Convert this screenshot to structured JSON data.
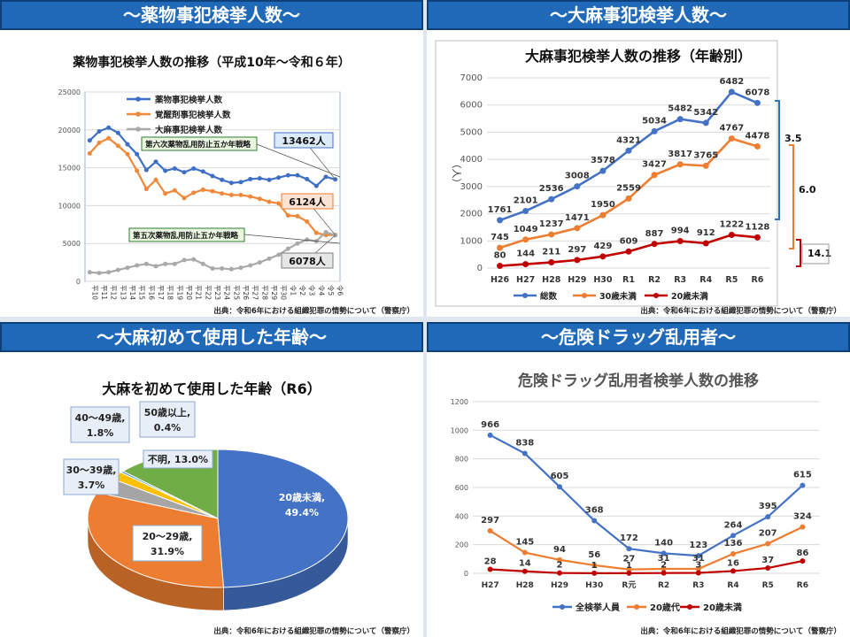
{
  "panels": {
    "tl": {
      "header": "〜薬物事犯検挙人数〜",
      "title": "薬物事犯検挙人数の推移（平成10年〜令和６年）",
      "source": "出典：令和6年における組織犯罪の情勢について（警察庁）"
    },
    "tr": {
      "header": "〜大麻事犯検挙人数〜",
      "title": "大麻事犯検挙人数の推移（年齢別）",
      "source": "出典：令和6年における組織犯罪の情勢について（警察庁）"
    },
    "bl": {
      "header": "〜大麻初めて使用した年齢〜",
      "title": "大麻を初めて使用した年齢（R6）",
      "source": "出典：令和6年における組織犯罪の情勢について（警察庁）"
    },
    "br": {
      "header": "〜危険ドラッグ乱用者〜",
      "title": "危険ドラッグ乱用者検挙人数の推移",
      "source": "出典：令和6年における組織犯罪の情勢について（警察庁）"
    }
  },
  "chart_data": [
    {
      "type": "line",
      "title": "薬物事犯検挙人数の推移（平成10年〜令和６年）",
      "categories": [
        "平10",
        "平11",
        "平12",
        "平13",
        "平14",
        "平15",
        "平16",
        "平17",
        "平18",
        "平19",
        "平20",
        "平21",
        "平22",
        "平23",
        "平24",
        "平25",
        "平26",
        "平27",
        "平28",
        "平29",
        "平30",
        "令1",
        "令2",
        "令3",
        "令4",
        "令5",
        "令6"
      ],
      "ylim": [
        0,
        25000
      ],
      "yticks": [
        0,
        5000,
        10000,
        15000,
        20000,
        25000
      ],
      "grid": true,
      "legend_position": "top-left",
      "series": [
        {
          "name": "薬物事犯検挙人数",
          "color": "#3d6fc4",
          "values": [
            18600,
            19800,
            20300,
            19600,
            18100,
            16800,
            14700,
            15800,
            14600,
            14900,
            14400,
            14900,
            14500,
            13900,
            13400,
            13000,
            13100,
            13500,
            13600,
            13400,
            13700,
            14000,
            14000,
            13500,
            12600,
            13800,
            13462
          ]
        },
        {
          "name": "覚醒剤事犯検挙人数",
          "color": "#f0883a",
          "values": [
            16900,
            18300,
            18900,
            17900,
            16800,
            14600,
            12200,
            13400,
            11600,
            12000,
            11000,
            11700,
            12100,
            11900,
            11600,
            11400,
            11400,
            11200,
            10900,
            10500,
            10300,
            8700,
            8600,
            7900,
            6400,
            6100,
            6124
          ]
        },
        {
          "name": "大麻事犯検挙人数",
          "color": "#a9a9a9",
          "values": [
            1200,
            1100,
            1200,
            1500,
            1800,
            2100,
            2300,
            2000,
            2300,
            2300,
            2800,
            2900,
            2300,
            1700,
            1700,
            1600,
            1800,
            2100,
            2500,
            3000,
            3500,
            4300,
            5000,
            5500,
            5300,
            6500,
            6078
          ]
        }
      ],
      "annotations": [
        {
          "text": "13462人",
          "series": 0,
          "index": 26
        },
        {
          "text": "6124人",
          "series": 1,
          "index": 26
        },
        {
          "text": "6078人",
          "series": 2,
          "index": 26
        },
        {
          "text": "第六次薬物乱用防止五か年戦略"
        },
        {
          "text": "第五次薬物乱用防止五か年戦略"
        }
      ]
    },
    {
      "type": "line",
      "title": "大麻事犯検挙人数の推移（年齢別）",
      "ylabel": "（人）",
      "categories": [
        "H26",
        "H27",
        "H28",
        "H29",
        "H30",
        "R1",
        "R2",
        "R3",
        "R4",
        "R5",
        "R6"
      ],
      "ylim": [
        0,
        7000
      ],
      "yticks": [
        0,
        1000,
        2000,
        3000,
        4000,
        5000,
        6000,
        7000
      ],
      "grid": true,
      "legend_position": "bottom",
      "series": [
        {
          "name": "総数",
          "color": "#4472c4",
          "values": [
            1761,
            2101,
            2536,
            3008,
            3578,
            4321,
            5034,
            5482,
            5342,
            6482,
            6078
          ]
        },
        {
          "name": "30歳未満",
          "color": "#ed7d31",
          "values": [
            745,
            1049,
            1237,
            1471,
            1950,
            2559,
            3427,
            3817,
            3765,
            4767,
            4478
          ]
        },
        {
          "name": "20歳未満",
          "color": "#c00000",
          "values": [
            80,
            144,
            211,
            297,
            429,
            609,
            887,
            994,
            912,
            1222,
            1128
          ]
        }
      ],
      "ratios": [
        "3.5",
        "6.0",
        "14.1"
      ]
    },
    {
      "type": "pie",
      "title": "大麻を初めて使用した年齢（R6）",
      "slices": [
        {
          "label": "20歳未満",
          "value": 49.4,
          "text": "49.4%",
          "color": "#4472c4"
        },
        {
          "label": "20〜29歳",
          "value": 31.9,
          "text": "31.9%",
          "color": "#ed7d31"
        },
        {
          "label": "30〜39歳",
          "value": 3.7,
          "text": "3.7%",
          "color": "#a5a5a5"
        },
        {
          "label": "40〜49歳",
          "value": 1.8,
          "text": "1.8%",
          "color": "#ffc000"
        },
        {
          "label": "50歳以上",
          "value": 0.4,
          "text": "0.4%",
          "color": "#5b9bd5"
        },
        {
          "label": "不明",
          "value": 13.0,
          "text": "13.0%",
          "color": "#70ad47"
        }
      ]
    },
    {
      "type": "line",
      "title": "危険ドラッグ乱用者検挙人数の推移",
      "categories": [
        "H27",
        "H28",
        "H29",
        "H30",
        "R元",
        "R2",
        "R3",
        "R4",
        "R5",
        "R6"
      ],
      "ylim": [
        0,
        1200
      ],
      "yticks": [
        0,
        200,
        400,
        600,
        800,
        1000,
        1200
      ],
      "grid": true,
      "legend_position": "bottom",
      "series": [
        {
          "name": "全検挙人員",
          "color": "#4472c4",
          "values": [
            966,
            838,
            605,
            368,
            172,
            140,
            123,
            264,
            395,
            615
          ]
        },
        {
          "name": "20歳代",
          "color": "#ed7d31",
          "values": [
            297,
            145,
            94,
            56,
            27,
            31,
            31,
            136,
            207,
            324
          ]
        },
        {
          "name": "20歳未満",
          "color": "#c00000",
          "values": [
            28,
            14,
            2,
            1,
            1,
            2,
            3,
            16,
            37,
            86
          ]
        }
      ]
    }
  ]
}
